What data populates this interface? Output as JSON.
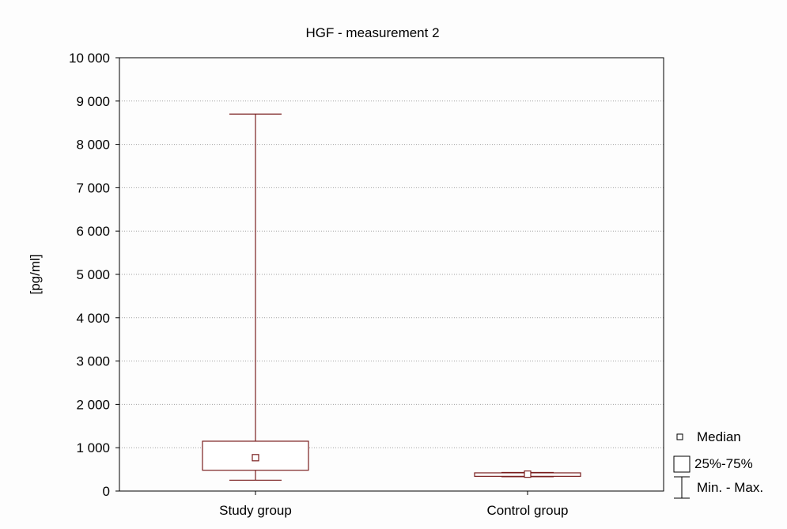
{
  "chart_data": {
    "type": "box",
    "title": "HGF - measurement 2",
    "ylabel": "[pg/ml]",
    "xlabel": "",
    "ylim": [
      0,
      10000
    ],
    "yticks": [
      0,
      1000,
      2000,
      3000,
      4000,
      5000,
      6000,
      7000,
      8000,
      9000,
      10000
    ],
    "ytick_labels": [
      "0",
      "1 000",
      "2 000",
      "3 000",
      "4 000",
      "5 000",
      "6 000",
      "7 000",
      "8 000",
      "9 000",
      "10 000"
    ],
    "grid": true,
    "legend_position": "right",
    "legend": {
      "median": "Median",
      "box": "25%-75%",
      "whisker": "Min. - Max."
    },
    "categories": [
      "Study group",
      "Control group"
    ],
    "groups": [
      {
        "name": "Study group",
        "min": 250,
        "q1": 480,
        "median": 770,
        "q3": 1150,
        "max": 8700
      },
      {
        "name": "Control group",
        "min": 330,
        "q1": 340,
        "median": 390,
        "q3": 420,
        "max": 430
      }
    ],
    "colors": {
      "series": "#7a1f1f",
      "grid": "#a0a0a0",
      "axis": "#000000"
    }
  }
}
